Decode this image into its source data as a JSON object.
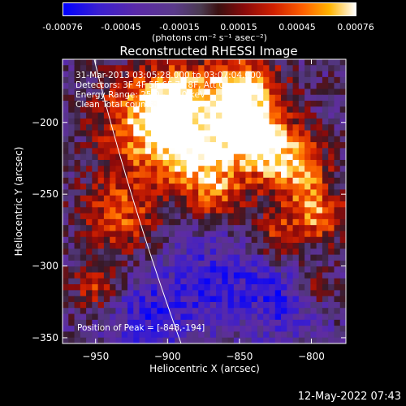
{
  "colorbar": {
    "ticks": [
      "-0.00076",
      "-0.00045",
      "-0.00015",
      "0.00015",
      "0.00045",
      "0.00076"
    ],
    "units": "(photons cm⁻² s⁻¹ asec⁻²)"
  },
  "chart_data": {
    "type": "heatmap",
    "title": "Reconstructed RHESSI Image",
    "xlabel": "Heliocentric X (arcsec)",
    "ylabel": "Heliocentric Y (arcsec)",
    "xlim": [
      -973,
      -776
    ],
    "ylim": [
      -354,
      -156
    ],
    "xticks": [
      -950,
      -900,
      -850,
      -800
    ],
    "yticks": [
      -200,
      -250,
      -300,
      -350
    ],
    "xtick_labels": [
      "−950",
      "−900",
      "−850",
      "−800"
    ],
    "ytick_labels": [
      "−200",
      "−250",
      "−300",
      "−350"
    ],
    "color_range": [
      -0.00076,
      0.00076
    ],
    "peak_xy": [
      -848,
      -194
    ]
  },
  "annotations": {
    "line1": "31-Mar-2013 03:05:28.000 to 03:07:04.000",
    "line2": "Detectors: 3F 4F 5F 6F 7F 8F, Att 0",
    "line3": "Energy Range: 25.0 - 50.0 keV",
    "line4": "Clean    Total counts: 2.38E+03",
    "peak": "Position of Peak = [-848,-194]"
  },
  "timestamp": "12-May-2022 07:43"
}
